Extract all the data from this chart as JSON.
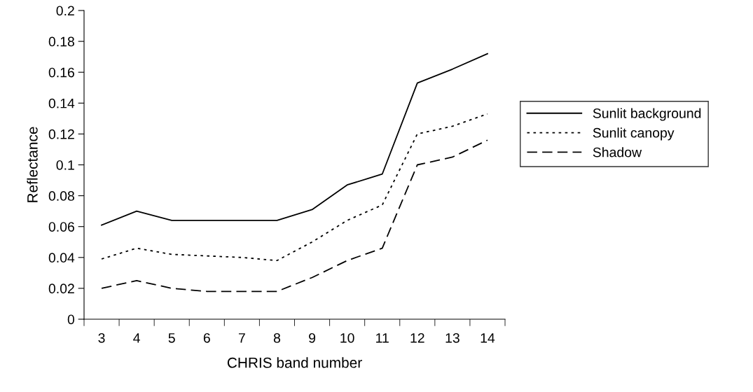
{
  "chart_data": {
    "type": "line",
    "xlabel": "CHRIS band number",
    "ylabel": "Reflectance",
    "categories": [
      "3",
      "4",
      "5",
      "6",
      "7",
      "8",
      "9",
      "10",
      "11",
      "12",
      "13",
      "14"
    ],
    "series": [
      {
        "name": "Sunlit background",
        "color": "#000000",
        "line_style": "solid",
        "values": [
          0.061,
          0.07,
          0.064,
          0.064,
          0.064,
          0.064,
          0.071,
          0.087,
          0.094,
          0.153,
          0.162,
          0.172
        ]
      },
      {
        "name": "Sunlit canopy",
        "color": "#000000",
        "line_style": "dotted",
        "values": [
          0.039,
          0.046,
          0.042,
          0.041,
          0.04,
          0.038,
          0.05,
          0.064,
          0.074,
          0.12,
          0.125,
          0.133
        ]
      },
      {
        "name": "Shadow",
        "color": "#000000",
        "line_style": "dashed",
        "values": [
          0.02,
          0.025,
          0.02,
          0.018,
          0.018,
          0.018,
          0.027,
          0.038,
          0.046,
          0.1,
          0.105,
          0.116
        ]
      }
    ],
    "ylim": [
      0,
      0.2
    ],
    "yticks": [
      0,
      0.02,
      0.04,
      0.06,
      0.08,
      0.1,
      0.12,
      0.14,
      0.16,
      0.18,
      0.2
    ],
    "grid": false,
    "legend": "right",
    "marker": "none"
  }
}
